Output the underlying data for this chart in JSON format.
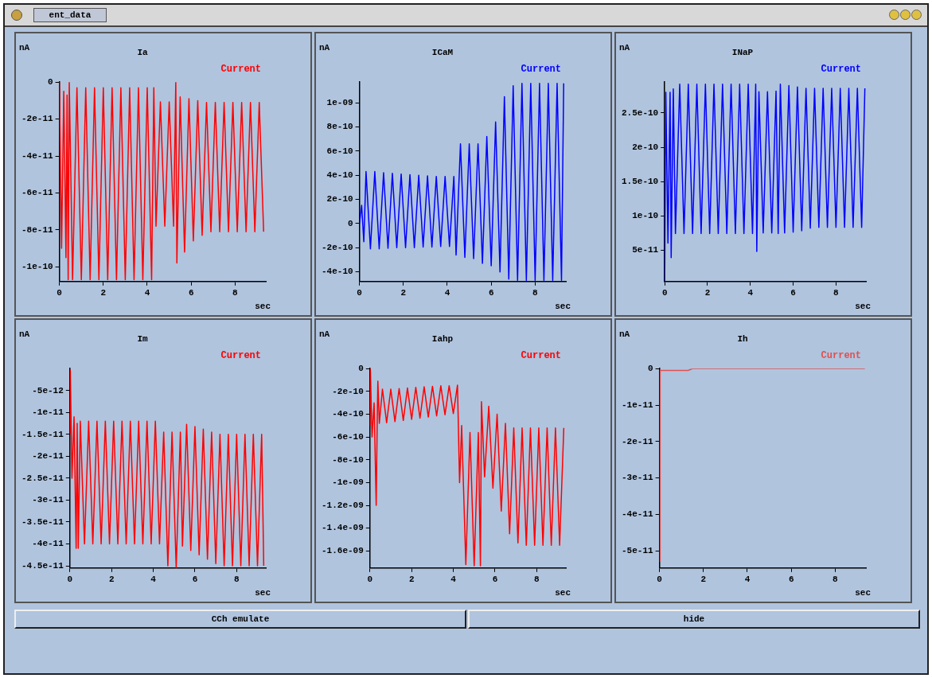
{
  "chart_data": [
    {
      "type": "line",
      "title": "Ia",
      "xlabel": "sec",
      "ylabel": "nA",
      "legend": "top right",
      "grid": false,
      "marker": "none",
      "xlim": [
        0,
        9.4
      ],
      "xticks": [
        0,
        2,
        4,
        6,
        8
      ],
      "ylim": [
        -1.08e-10,
        0
      ],
      "yticks": [
        0,
        -2e-11,
        -4e-11,
        -6e-11,
        -8e-11,
        -1e-10
      ],
      "x": [
        0,
        0.1,
        0.2,
        0.3,
        0.35,
        0.4,
        0.45,
        0.6,
        0.8,
        1.0,
        1.2,
        1.4,
        1.6,
        1.8,
        2.0,
        2.2,
        2.4,
        2.6,
        2.8,
        3.0,
        3.2,
        3.4,
        3.6,
        3.8,
        4.0,
        4.2,
        4.3,
        4.4,
        4.6,
        4.8,
        5.0,
        5.2,
        5.3,
        5.35,
        5.5,
        5.7,
        5.9,
        6.1,
        6.3,
        6.5,
        6.7,
        6.9,
        7.1,
        7.3,
        7.5,
        7.7,
        7.9,
        8.1,
        8.3,
        8.5,
        8.7,
        8.9,
        9.1,
        9.3
      ],
      "series": [
        {
          "name": "Current",
          "color": "#ff0000",
          "values": [
            0,
            -9e-11,
            -5e-12,
            -9.5e-11,
            -7e-12,
            -1.07e-10,
            0,
            -1.07e-10,
            -3e-12,
            -1.07e-10,
            -3e-12,
            -1.07e-10,
            -3e-12,
            -1.07e-10,
            -3e-12,
            -1.07e-10,
            -3e-12,
            -1.07e-10,
            -3e-12,
            -1.07e-10,
            -3e-12,
            -1.07e-10,
            -3e-12,
            -1.07e-10,
            -3e-12,
            -1.07e-10,
            -3e-12,
            -7.8e-11,
            -1.07e-11,
            -7.8e-11,
            -1.07e-11,
            -7.8e-11,
            0,
            -9.8e-11,
            -8e-12,
            -9.2e-11,
            -9e-12,
            -8.6e-11,
            -1e-11,
            -8.3e-11,
            -1.1e-11,
            -8.1e-11,
            -1.1e-11,
            -8.1e-11,
            -1.1e-11,
            -8.1e-11,
            -1.1e-11,
            -8.1e-11,
            -1.1e-11,
            -8.1e-11,
            -1.1e-11,
            -8.1e-11,
            -1.1e-11,
            -8.1e-11
          ]
        }
      ]
    },
    {
      "type": "line",
      "title": "ICaM",
      "xlabel": "sec",
      "ylabel": "nA",
      "legend": "top right",
      "grid": false,
      "marker": "none",
      "xlim": [
        0,
        9.4
      ],
      "xticks": [
        0,
        2,
        4,
        6,
        8
      ],
      "ylim": [
        -4.8e-10,
        1.17e-09
      ],
      "yticks": [
        -4e-10,
        -2e-10,
        0,
        2e-10,
        4e-10,
        6e-10,
        8e-10,
        {
          "value": 1e-09,
          "label": "1e-09"
        }
      ],
      "x": [
        0,
        0.1,
        0.2,
        0.3,
        0.5,
        0.7,
        0.9,
        1.1,
        1.3,
        1.5,
        1.7,
        1.9,
        2.1,
        2.3,
        2.5,
        2.7,
        2.9,
        3.1,
        3.3,
        3.5,
        3.7,
        3.9,
        4.1,
        4.3,
        4.4,
        4.6,
        4.8,
        5.0,
        5.2,
        5.4,
        5.6,
        5.8,
        6.0,
        6.2,
        6.4,
        6.6,
        6.8,
        7.0,
        7.2,
        7.4,
        7.6,
        7.8,
        8.0,
        8.2,
        8.4,
        8.6,
        8.8,
        9.0,
        9.2,
        9.3
      ],
      "series": [
        {
          "name": "Current",
          "color": "#0000ff",
          "values": [
            0,
            1.5e-10,
            -1.5e-10,
            4.3e-10,
            -2.1e-10,
            4.3e-10,
            -2.1e-10,
            4.2e-10,
            -2.05e-10,
            4.15e-10,
            -2e-10,
            4.1e-10,
            -2e-10,
            4.05e-10,
            -2e-10,
            4e-10,
            -1.95e-10,
            3.95e-10,
            -1.95e-10,
            3.9e-10,
            -1.9e-10,
            3.9e-10,
            -1.9e-10,
            3.9e-10,
            -2.6e-10,
            6.6e-10,
            -2.8e-10,
            6.6e-10,
            -2.9e-10,
            6.6e-10,
            -3.3e-10,
            7.2e-10,
            -3.5e-10,
            8.4e-10,
            -4e-10,
            1.05e-09,
            -4.6e-10,
            1.14e-09,
            -4.7e-10,
            1.16e-09,
            -4.7e-10,
            1.16e-09,
            -4.7e-10,
            1.16e-09,
            -4.7e-10,
            1.16e-09,
            -4.7e-10,
            1.16e-09,
            -4.7e-10,
            1.16e-09
          ]
        }
      ]
    },
    {
      "type": "line",
      "title": "INaP",
      "xlabel": "sec",
      "ylabel": "nA",
      "legend": "top right",
      "grid": false,
      "marker": "none",
      "xlim": [
        0,
        9.4
      ],
      "xticks": [
        0,
        2,
        4,
        6,
        8
      ],
      "ylim": [
        4e-12,
        2.95e-10
      ],
      "yticks": [
        5e-11,
        1e-10,
        1.5e-10,
        2e-10,
        2.5e-10
      ],
      "x": [
        0,
        0.05,
        0.15,
        0.25,
        0.3,
        0.4,
        0.5,
        0.7,
        0.9,
        1.1,
        1.3,
        1.5,
        1.7,
        1.9,
        2.1,
        2.3,
        2.5,
        2.7,
        2.9,
        3.1,
        3.3,
        3.5,
        3.7,
        3.9,
        4.1,
        4.25,
        4.3,
        4.4,
        4.6,
        4.8,
        5.0,
        5.2,
        5.3,
        5.4,
        5.6,
        5.8,
        6.0,
        6.2,
        6.4,
        6.6,
        6.8,
        7.0,
        7.2,
        7.4,
        7.6,
        7.8,
        8.0,
        8.2,
        8.4,
        8.6,
        8.8,
        9.0,
        9.2,
        9.35
      ],
      "series": [
        {
          "name": "Current",
          "color": "#0000ff",
          "values": [
            5e-12,
            2.8e-10,
            6e-11,
            2.8e-10,
            3.9e-11,
            2.85e-10,
            7.4e-11,
            2.92e-10,
            7.4e-11,
            2.92e-10,
            7.4e-11,
            2.92e-10,
            7.4e-11,
            2.92e-10,
            7.4e-11,
            2.92e-10,
            7.4e-11,
            2.92e-10,
            7.4e-11,
            2.92e-10,
            7.4e-11,
            2.92e-10,
            7.4e-11,
            2.92e-10,
            7.4e-11,
            2.92e-10,
            4.8e-11,
            2.81e-10,
            7.5e-11,
            2.81e-10,
            7.5e-11,
            2.82e-10,
            7.4e-11,
            2.92e-10,
            7.5e-11,
            2.9e-10,
            7.6e-11,
            2.88e-10,
            7.8e-11,
            2.86e-10,
            8.2e-11,
            2.86e-10,
            8.3e-11,
            2.86e-10,
            8.3e-11,
            2.86e-10,
            8.3e-11,
            2.86e-10,
            8.3e-11,
            2.86e-10,
            8.3e-11,
            2.86e-10,
            8.3e-11,
            2.86e-10
          ]
        }
      ]
    },
    {
      "type": "line",
      "title": "Im",
      "xlabel": "sec",
      "ylabel": "nA",
      "legend": "top right",
      "grid": false,
      "marker": "none",
      "xlim": [
        0,
        9.4
      ],
      "xticks": [
        0,
        2,
        4,
        6,
        8
      ],
      "ylim": [
        -4.55e-11,
        0
      ],
      "yticks": [
        -5e-12,
        -1e-11,
        -1.5e-11,
        -2e-11,
        -2.5e-11,
        -3e-11,
        -3.5e-11,
        -4e-11,
        -4.5e-11
      ],
      "x": [
        0,
        0.02,
        0.1,
        0.2,
        0.3,
        0.35,
        0.4,
        0.5,
        0.7,
        0.9,
        1.1,
        1.3,
        1.5,
        1.7,
        1.9,
        2.1,
        2.3,
        2.5,
        2.7,
        2.9,
        3.1,
        3.3,
        3.5,
        3.7,
        3.9,
        4.1,
        4.3,
        4.5,
        4.7,
        4.9,
        5.1,
        5.3,
        5.4,
        5.6,
        5.8,
        6.0,
        6.2,
        6.4,
        6.6,
        6.8,
        7.0,
        7.2,
        7.4,
        7.6,
        7.8,
        8.0,
        8.2,
        8.4,
        8.6,
        8.8,
        9.0,
        9.2,
        9.3
      ],
      "series": [
        {
          "name": "Current",
          "color": "#ff0000",
          "values": [
            -1.5e-11,
            -3e-13,
            -2.5e-11,
            -1.1e-11,
            -4.1e-11,
            -1.25e-11,
            -4.1e-11,
            -1.2e-11,
            -4e-11,
            -1.2e-11,
            -4e-11,
            -1.2e-11,
            -4e-11,
            -1.2e-11,
            -4e-11,
            -1.2e-11,
            -4e-11,
            -1.2e-11,
            -4e-11,
            -1.2e-11,
            -4e-11,
            -1.2e-11,
            -4e-11,
            -1.2e-11,
            -4e-11,
            -1.2e-11,
            -4e-11,
            -1.45e-11,
            -4.5e-11,
            -1.45e-11,
            -4.55e-11,
            -1.45e-11,
            -4.05e-11,
            -1.27e-11,
            -4.15e-11,
            -1.32e-11,
            -4.25e-11,
            -1.38e-11,
            -4.35e-11,
            -1.45e-11,
            -4.45e-11,
            -1.5e-11,
            -4.5e-11,
            -1.5e-11,
            -4.5e-11,
            -1.5e-11,
            -4.5e-11,
            -1.5e-11,
            -4.5e-11,
            -1.5e-11,
            -4.5e-11,
            -1.5e-11,
            -4.5e-11
          ]
        }
      ]
    },
    {
      "type": "line",
      "title": "Iahp",
      "xlabel": "sec",
      "ylabel": "nA",
      "legend": "top right",
      "grid": false,
      "marker": "none",
      "xlim": [
        0,
        9.4
      ],
      "xticks": [
        0,
        2,
        4,
        6,
        8
      ],
      "ylim": [
        -1.75e-09,
        0
      ],
      "yticks": [
        0,
        -2e-10,
        -4e-10,
        -6e-10,
        -8e-10,
        {
          "value": -1e-09,
          "label": "-1e-09"
        },
        {
          "value": -1.2e-09,
          "label": "-1.2e-09"
        },
        {
          "value": -1.4e-09,
          "label": "-1.4e-09"
        },
        {
          "value": -1.6e-09,
          "label": "-1.6e-09"
        }
      ],
      "x": [
        0,
        0.02,
        0.1,
        0.2,
        0.3,
        0.35,
        0.38,
        0.45,
        0.6,
        0.8,
        1.0,
        1.2,
        1.4,
        1.6,
        1.8,
        2.0,
        2.2,
        2.4,
        2.6,
        2.8,
        3.0,
        3.2,
        3.4,
        3.6,
        3.8,
        4.0,
        4.2,
        4.3,
        4.4,
        4.6,
        4.8,
        5.0,
        5.2,
        5.3,
        5.35,
        5.5,
        5.7,
        5.9,
        6.1,
        6.3,
        6.5,
        6.7,
        6.9,
        7.1,
        7.3,
        7.5,
        7.7,
        7.9,
        8.1,
        8.3,
        8.5,
        8.7,
        8.9,
        9.1,
        9.3
      ],
      "series": [
        {
          "name": "Current",
          "color": "#ff0000",
          "values": [
            -5e-10,
            0,
            -6e-10,
            -3e-10,
            -1.2e-09,
            -4.5e-10,
            -1.1e-10,
            -4.8e-10,
            -1.8e-10,
            -4.75e-10,
            -1.8e-10,
            -4.65e-10,
            -1.75e-10,
            -4.55e-10,
            -1.7e-10,
            -4.45e-10,
            -1.65e-10,
            -4.35e-10,
            -1.6e-10,
            -4.25e-10,
            -1.55e-10,
            -4.15e-10,
            -1.5e-10,
            -4.05e-10,
            -1.5e-10,
            -3.95e-10,
            -1.45e-10,
            -1e-09,
            -5e-10,
            -1.72e-09,
            -5.6e-10,
            -1.73e-09,
            -5.6e-10,
            -1.73e-09,
            -2.9e-10,
            -9.5e-10,
            -3.3e-10,
            -1.05e-09,
            -4e-10,
            -1.25e-09,
            -4.8e-10,
            -1.45e-09,
            -5.2e-10,
            -1.53e-09,
            -5.2e-10,
            -1.55e-09,
            -5.2e-10,
            -1.55e-09,
            -5.2e-10,
            -1.55e-09,
            -5.2e-10,
            -1.55e-09,
            -5.2e-10,
            -1.55e-09,
            -5.2e-10
          ]
        }
      ]
    },
    {
      "type": "line",
      "title": "Ih",
      "xlabel": "sec",
      "ylabel": "nA",
      "legend": "top right",
      "grid": false,
      "marker": "none",
      "xlim": [
        0,
        9.4
      ],
      "xticks": [
        0,
        2,
        4,
        6,
        8
      ],
      "ylim": [
        -5.47e-11,
        0
      ],
      "yticks": [
        0,
        -1e-11,
        -2e-11,
        -3e-11,
        -4e-11,
        -5e-11
      ],
      "x": [
        0.03,
        0.03,
        1.3,
        1.5,
        9.35
      ],
      "series": [
        {
          "name": "Current",
          "color": "#e05050",
          "values": [
            -5.3e-11,
            -5e-13,
            -5e-13,
            0,
            0
          ]
        }
      ]
    },
    {
      "type": "other",
      "title": "ent_data",
      "annotations": [
        "CCh emulate",
        "hide"
      ]
    }
  ]
}
